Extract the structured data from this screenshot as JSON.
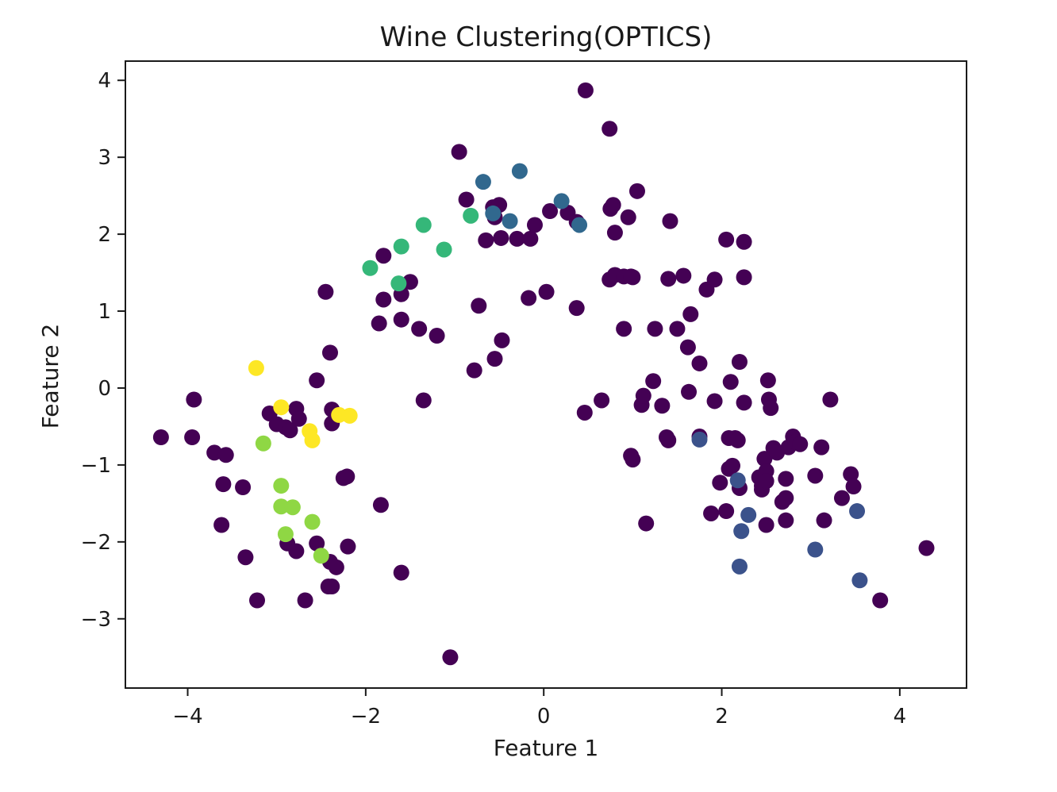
{
  "chart_data": {
    "type": "scatter",
    "title": "Wine Clustering(OPTICS)",
    "xlabel": "Feature 1",
    "ylabel": "Feature 2",
    "xlim": [
      -4.7,
      4.75
    ],
    "ylim": [
      -3.9,
      4.25
    ],
    "xticks": [
      -4,
      -2,
      0,
      2,
      4
    ],
    "yticks": [
      -3,
      -2,
      -1,
      0,
      1,
      2,
      3,
      4
    ],
    "grid": false,
    "legend": "none",
    "cluster_colors": {
      "noise": "#440154",
      "c1": "#3b528b",
      "c2": "#31688e",
      "c3": "#35b779",
      "c4": "#8fd744",
      "c5": "#fde725"
    },
    "series": [
      {
        "cluster": "noise",
        "color": "#440154",
        "points": [
          [
            -4.3,
            -0.64
          ],
          [
            -3.95,
            -0.64
          ],
          [
            -3.93,
            -0.15
          ],
          [
            -3.7,
            -0.84
          ],
          [
            -3.57,
            -0.87
          ],
          [
            -3.6,
            -1.25
          ],
          [
            -3.62,
            -1.78
          ],
          [
            -3.38,
            -1.29
          ],
          [
            -3.35,
            -2.2
          ],
          [
            -3.22,
            -2.76
          ],
          [
            -3.08,
            -0.33
          ],
          [
            -3.0,
            -0.47
          ],
          [
            -2.9,
            -0.51
          ],
          [
            -2.85,
            -0.55
          ],
          [
            -2.78,
            -0.27
          ],
          [
            -2.75,
            -0.4
          ],
          [
            -2.88,
            -2.02
          ],
          [
            -2.78,
            -2.12
          ],
          [
            -2.68,
            -2.76
          ],
          [
            -2.55,
            -2.02
          ],
          [
            -2.55,
            0.1
          ],
          [
            -2.45,
            1.25
          ],
          [
            -2.4,
            0.46
          ],
          [
            -2.38,
            -0.28
          ],
          [
            -2.38,
            -0.46
          ],
          [
            -2.4,
            -2.26
          ],
          [
            -2.33,
            -2.33
          ],
          [
            -2.42,
            -2.58
          ],
          [
            -2.38,
            -2.58
          ],
          [
            -2.25,
            -1.17
          ],
          [
            -2.21,
            -1.15
          ],
          [
            -2.2,
            -2.06
          ],
          [
            -1.83,
            -1.52
          ],
          [
            -1.8,
            1.72
          ],
          [
            -1.8,
            1.15
          ],
          [
            -1.85,
            0.84
          ],
          [
            -1.6,
            1.22
          ],
          [
            -1.6,
            0.89
          ],
          [
            -1.5,
            1.38
          ],
          [
            -1.4,
            0.77
          ],
          [
            -1.35,
            -0.16
          ],
          [
            -1.2,
            0.68
          ],
          [
            -1.6,
            -2.4
          ],
          [
            -1.05,
            -3.5
          ],
          [
            -0.95,
            3.07
          ],
          [
            -0.87,
            2.45
          ],
          [
            -0.78,
            0.23
          ],
          [
            -0.73,
            1.07
          ],
          [
            -0.65,
            1.92
          ],
          [
            -0.57,
            2.35
          ],
          [
            -0.55,
            2.22
          ],
          [
            -0.5,
            2.38
          ],
          [
            -0.48,
            1.95
          ],
          [
            -0.55,
            0.38
          ],
          [
            -0.47,
            0.62
          ],
          [
            -0.3,
            1.94
          ],
          [
            -0.15,
            1.94
          ],
          [
            -0.1,
            2.12
          ],
          [
            -0.17,
            1.17
          ],
          [
            0.03,
            1.25
          ],
          [
            0.07,
            2.3
          ],
          [
            0.27,
            2.28
          ],
          [
            0.37,
            2.16
          ],
          [
            0.37,
            1.04
          ],
          [
            0.46,
            -0.32
          ],
          [
            0.47,
            3.87
          ],
          [
            0.65,
            -0.16
          ],
          [
            0.74,
            3.37
          ],
          [
            0.74,
            1.41
          ],
          [
            0.75,
            2.33
          ],
          [
            0.78,
            2.38
          ],
          [
            0.8,
            1.47
          ],
          [
            0.8,
            2.02
          ],
          [
            0.9,
            1.45
          ],
          [
            0.9,
            0.77
          ],
          [
            0.95,
            2.22
          ],
          [
            0.98,
            1.45
          ],
          [
            1.0,
            1.44
          ],
          [
            1.05,
            2.56
          ],
          [
            0.98,
            -0.88
          ],
          [
            1.0,
            -0.93
          ],
          [
            1.1,
            -0.22
          ],
          [
            1.12,
            -0.1
          ],
          [
            1.15,
            -1.76
          ],
          [
            1.23,
            0.09
          ],
          [
            1.25,
            0.77
          ],
          [
            1.33,
            -0.23
          ],
          [
            1.38,
            -0.64
          ],
          [
            1.4,
            -0.68
          ],
          [
            1.4,
            1.42
          ],
          [
            1.42,
            2.17
          ],
          [
            1.5,
            0.77
          ],
          [
            1.57,
            1.46
          ],
          [
            1.62,
            0.53
          ],
          [
            1.65,
            0.96
          ],
          [
            1.63,
            -0.05
          ],
          [
            1.75,
            0.32
          ],
          [
            1.75,
            -0.63
          ],
          [
            1.83,
            1.28
          ],
          [
            1.88,
            -1.63
          ],
          [
            1.92,
            1.41
          ],
          [
            1.92,
            -0.17
          ],
          [
            1.98,
            -1.23
          ],
          [
            2.05,
            1.93
          ],
          [
            2.05,
            -1.6
          ],
          [
            2.08,
            -1.05
          ],
          [
            2.08,
            -0.65
          ],
          [
            2.1,
            0.08
          ],
          [
            2.12,
            -1.01
          ],
          [
            2.15,
            -0.65
          ],
          [
            2.18,
            -0.68
          ],
          [
            2.2,
            -1.3
          ],
          [
            2.2,
            0.34
          ],
          [
            2.25,
            1.9
          ],
          [
            2.25,
            1.44
          ],
          [
            2.25,
            -0.19
          ],
          [
            2.42,
            -1.16
          ],
          [
            2.45,
            -1.27
          ],
          [
            2.45,
            -1.32
          ],
          [
            2.48,
            -0.92
          ],
          [
            2.5,
            -1.08
          ],
          [
            2.5,
            -1.21
          ],
          [
            2.5,
            -1.78
          ],
          [
            2.52,
            0.1
          ],
          [
            2.53,
            -0.15
          ],
          [
            2.55,
            -0.26
          ],
          [
            2.58,
            -0.78
          ],
          [
            2.62,
            -0.84
          ],
          [
            2.68,
            -1.48
          ],
          [
            2.72,
            -1.72
          ],
          [
            2.72,
            -1.18
          ],
          [
            2.72,
            -1.43
          ],
          [
            2.75,
            -0.77
          ],
          [
            2.8,
            -0.63
          ],
          [
            2.83,
            -0.7
          ],
          [
            2.88,
            -0.73
          ],
          [
            3.05,
            -1.14
          ],
          [
            3.12,
            -0.77
          ],
          [
            3.15,
            -1.72
          ],
          [
            3.22,
            -0.15
          ],
          [
            3.35,
            -1.43
          ],
          [
            3.45,
            -1.12
          ],
          [
            3.48,
            -1.28
          ],
          [
            3.78,
            -2.76
          ],
          [
            4.3,
            -2.08
          ]
        ]
      },
      {
        "cluster": "c1",
        "color": "#3b528b",
        "points": [
          [
            1.75,
            -0.67
          ],
          [
            2.18,
            -1.2
          ],
          [
            2.22,
            -1.86
          ],
          [
            2.3,
            -1.65
          ],
          [
            2.2,
            -2.32
          ],
          [
            3.05,
            -2.1
          ],
          [
            3.52,
            -1.6
          ],
          [
            3.55,
            -2.5
          ]
        ]
      },
      {
        "cluster": "c2",
        "color": "#31688e",
        "points": [
          [
            -0.68,
            2.68
          ],
          [
            -0.57,
            2.27
          ],
          [
            -0.38,
            2.17
          ],
          [
            -0.27,
            2.82
          ],
          [
            0.2,
            2.43
          ],
          [
            0.4,
            2.12
          ]
        ]
      },
      {
        "cluster": "c3",
        "color": "#35b779",
        "points": [
          [
            -1.95,
            1.56
          ],
          [
            -1.6,
            1.84
          ],
          [
            -1.35,
            2.12
          ],
          [
            -1.12,
            1.8
          ],
          [
            -0.82,
            2.24
          ],
          [
            -1.63,
            1.36
          ]
        ]
      },
      {
        "cluster": "c4",
        "color": "#8fd744",
        "points": [
          [
            -3.15,
            -0.72
          ],
          [
            -2.95,
            -1.27
          ],
          [
            -2.95,
            -1.54
          ],
          [
            -2.82,
            -1.55
          ],
          [
            -2.9,
            -1.9
          ],
          [
            -2.6,
            -1.74
          ],
          [
            -2.5,
            -2.18
          ]
        ]
      },
      {
        "cluster": "c5",
        "color": "#fde725",
        "points": [
          [
            -3.23,
            0.26
          ],
          [
            -2.95,
            -0.25
          ],
          [
            -2.63,
            -0.56
          ],
          [
            -2.6,
            -0.68
          ],
          [
            -2.3,
            -0.35
          ],
          [
            -2.18,
            -0.36
          ]
        ]
      }
    ]
  }
}
